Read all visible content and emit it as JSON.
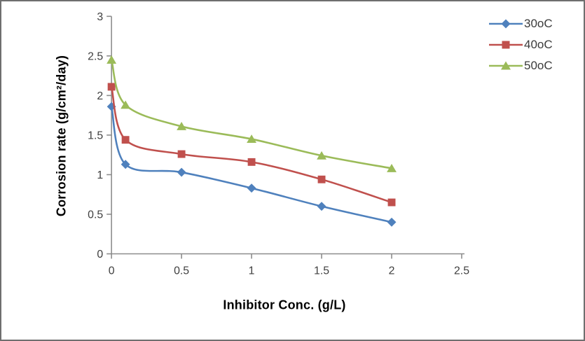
{
  "chart_data": {
    "type": "line",
    "title": "",
    "xlabel": "Inhibitor Conc. (g/L)",
    "ylabel": "Corrosion rate (g/cm²/day)",
    "x": [
      0,
      0.1,
      0.5,
      1,
      1.5,
      2
    ],
    "series": [
      {
        "name": "30oC",
        "marker": "diamond",
        "color": "#4F81BD",
        "values": [
          1.86,
          1.13,
          1.03,
          0.83,
          0.6,
          0.4
        ]
      },
      {
        "name": "40oC",
        "marker": "square",
        "color": "#C0504D",
        "values": [
          2.11,
          1.44,
          1.26,
          1.16,
          0.94,
          0.65
        ]
      },
      {
        "name": "50oC",
        "marker": "triangle",
        "color": "#9BBB59",
        "values": [
          2.45,
          1.88,
          1.61,
          1.45,
          1.24,
          1.08
        ]
      }
    ],
    "xlim": [
      0,
      2.5
    ],
    "ylim": [
      0,
      3
    ],
    "xticks": [
      0,
      0.5,
      1,
      1.5,
      2,
      2.5
    ],
    "yticks": [
      0,
      0.5,
      1,
      1.5,
      2,
      2.5,
      3
    ],
    "grid": false,
    "smooth": true,
    "legend_position": "top-right",
    "axis_color": "#8C8C8C",
    "tick_label_color": "#3F3F3F"
  }
}
